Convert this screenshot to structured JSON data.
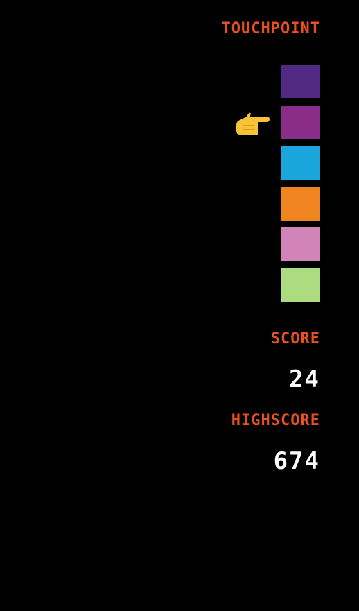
{
  "touchpoint": {
    "label": "TOUCHPOINT",
    "selected_index": 1,
    "colors": [
      "#512982",
      "#8a2d88",
      "#1ba5dd",
      "#f08420",
      "#d283b8",
      "#addb7f"
    ]
  },
  "score": {
    "label": "SCORE",
    "value": "24"
  },
  "highscore": {
    "label": "HIGHSCORE",
    "value": "674"
  },
  "pointer_icon": "pointing-hand-icon",
  "accent_color": "#e8501e"
}
